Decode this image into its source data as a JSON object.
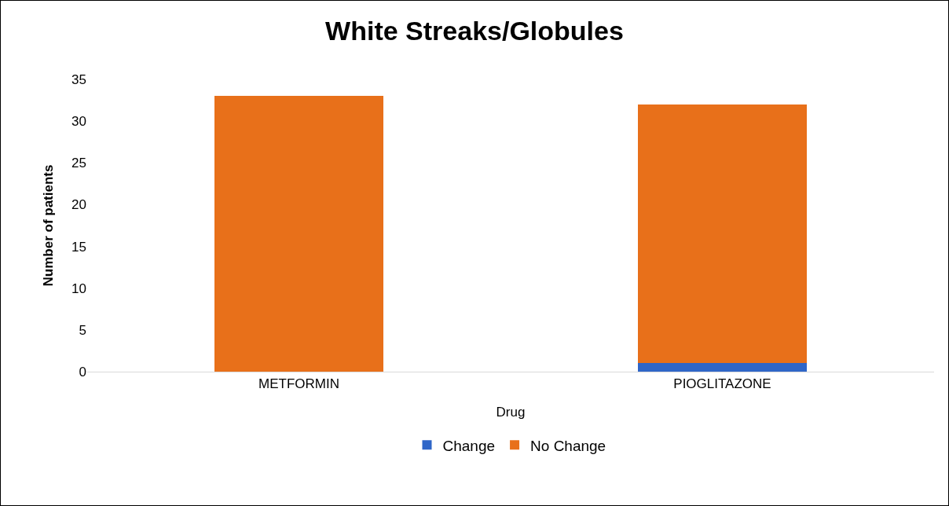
{
  "chart_data": {
    "type": "bar",
    "title": "White Streaks/Globules",
    "xlabel": "Drug",
    "ylabel": "Number of patients",
    "categories": [
      "METFORMIN",
      "PIOGLITAZONE"
    ],
    "series": [
      {
        "name": "Change",
        "color": "#2f66c8",
        "values": [
          0,
          1
        ]
      },
      {
        "name": "No Change",
        "color": "#e8701a",
        "values": [
          33,
          31
        ]
      }
    ],
    "stacked": true,
    "ylim": [
      0,
      35
    ],
    "yticks": [
      0,
      5,
      10,
      15,
      20,
      25,
      30,
      35
    ],
    "grid": false,
    "legend": "bottom"
  }
}
